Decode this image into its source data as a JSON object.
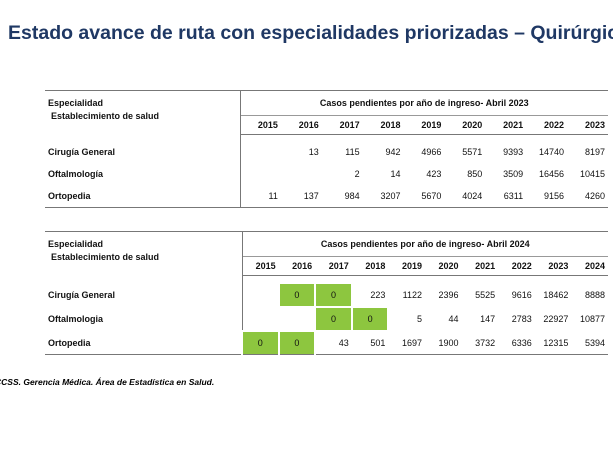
{
  "title": "Estado avance de ruta con especialidades priorizadas – Quirúrgicas",
  "tables": [
    {
      "header_left": [
        "Especialidad",
        "Establecimiento de salud"
      ],
      "caption": "Casos pendientes por año de ingreso- Abril 2023",
      "years": [
        2015,
        2016,
        2017,
        2018,
        2019,
        2020,
        2021,
        2022,
        2023
      ],
      "rows": [
        {
          "name": "Cirugía General",
          "cells": [
            null,
            13,
            115,
            942,
            4966,
            5571,
            9393,
            14740,
            8197
          ]
        },
        {
          "name": "Oftalmología",
          "cells": [
            null,
            null,
            2,
            14,
            423,
            850,
            3509,
            16456,
            10415
          ]
        },
        {
          "name": "Ortopedia",
          "cells": [
            11,
            137,
            984,
            3207,
            5670,
            4024,
            6311,
            9156,
            4260
          ]
        }
      ]
    },
    {
      "header_left": [
        "Especialidad",
        "Establecimiento de salud"
      ],
      "caption": "Casos pendientes por año de ingreso- Abril 2024",
      "years": [
        2015,
        2016,
        2017,
        2018,
        2019,
        2020,
        2021,
        2022,
        2023,
        2024
      ],
      "highlight_color": "#8dc63f",
      "rows": [
        {
          "name": "Cirugía General",
          "cells": [
            null,
            0,
            0,
            223,
            1122,
            2396,
            5525,
            9616,
            18462,
            8888
          ],
          "highlighted": [
            1,
            2
          ]
        },
        {
          "name": "Oftalmologia",
          "cells": [
            null,
            null,
            0,
            0,
            5,
            44,
            147,
            2783,
            22927,
            10877
          ],
          "highlighted": [
            2,
            3
          ]
        },
        {
          "name": "Ortopedia",
          "cells": [
            0,
            0,
            43,
            501,
            1697,
            1900,
            3732,
            6336,
            12315,
            5394
          ],
          "highlighted": [
            0,
            1
          ]
        }
      ]
    }
  ],
  "footer": "CCSS. Gerencia Médica. Área de Estadística en Salud."
}
